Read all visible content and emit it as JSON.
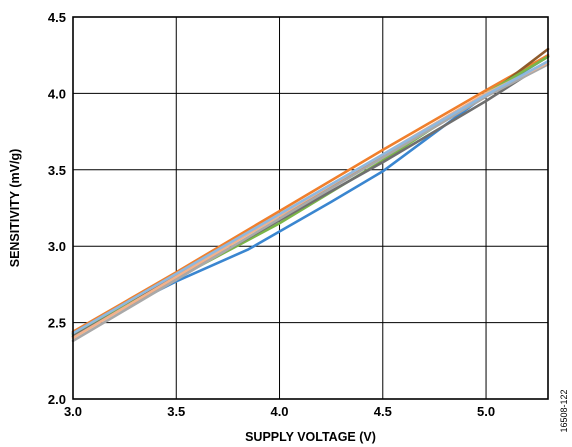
{
  "chart_data": {
    "type": "line",
    "title": "",
    "xlabel": "SUPPLY VOLTAGE (V)",
    "ylabel": "SENSITIVITY (mV/g)",
    "xlim": [
      3.0,
      5.3
    ],
    "ylim": [
      2.0,
      4.5
    ],
    "xticks": [
      3.0,
      3.5,
      4.0,
      4.5,
      5.0
    ],
    "xtick_labels": [
      "3.0",
      "3.5",
      "4.0",
      "4.5",
      "5.0"
    ],
    "yticks": [
      2.0,
      2.5,
      3.0,
      3.5,
      4.0,
      4.5
    ],
    "ytick_labels": [
      "2.0",
      "2.5",
      "3.0",
      "3.5",
      "4.0",
      "4.5"
    ],
    "grid": true,
    "legend": "none",
    "figure_id": "16508-122",
    "series": [
      {
        "color": "#F07F2C",
        "x": [
          3.0,
          3.5,
          4.0,
          4.5,
          5.0,
          5.3
        ],
        "y": [
          2.44,
          2.83,
          3.23,
          3.63,
          4.02,
          4.25
        ]
      },
      {
        "color": "#8E5A2B",
        "x": [
          3.0,
          3.5,
          4.0,
          4.5,
          5.0,
          5.3
        ],
        "y": [
          2.43,
          2.81,
          3.2,
          3.58,
          3.98,
          4.29
        ]
      },
      {
        "color": "#3A86D0",
        "x": [
          3.0,
          3.5,
          3.85,
          4.25,
          4.5,
          5.0,
          5.3
        ],
        "y": [
          2.43,
          2.77,
          2.98,
          3.29,
          3.49,
          3.99,
          4.24
        ]
      },
      {
        "color": "#7AB648",
        "x": [
          3.0,
          3.5,
          4.0,
          4.5,
          5.0,
          5.3
        ],
        "y": [
          2.42,
          2.79,
          3.15,
          3.56,
          4.0,
          4.24
        ]
      },
      {
        "color": "#6F6F6F",
        "x": [
          3.0,
          3.5,
          4.0,
          4.5,
          5.0,
          5.3
        ],
        "y": [
          2.41,
          2.79,
          3.17,
          3.55,
          3.95,
          4.21
        ]
      },
      {
        "color": "#A9A9A9",
        "x": [
          3.0,
          3.5,
          4.0,
          4.5,
          5.0,
          5.3
        ],
        "y": [
          2.38,
          2.78,
          3.18,
          3.58,
          3.98,
          4.19
        ]
      },
      {
        "color": "#F2B28C",
        "x": [
          3.0,
          3.5,
          4.0,
          4.5,
          5.0,
          5.3
        ],
        "y": [
          2.4,
          2.8,
          3.2,
          3.6,
          4.0,
          4.2
        ]
      },
      {
        "color": "#8FB8DE",
        "x": [
          3.0,
          3.5,
          4.0,
          4.5,
          5.0,
          5.3
        ],
        "y": [
          2.43,
          2.82,
          3.21,
          3.6,
          3.99,
          4.21
        ]
      }
    ]
  }
}
